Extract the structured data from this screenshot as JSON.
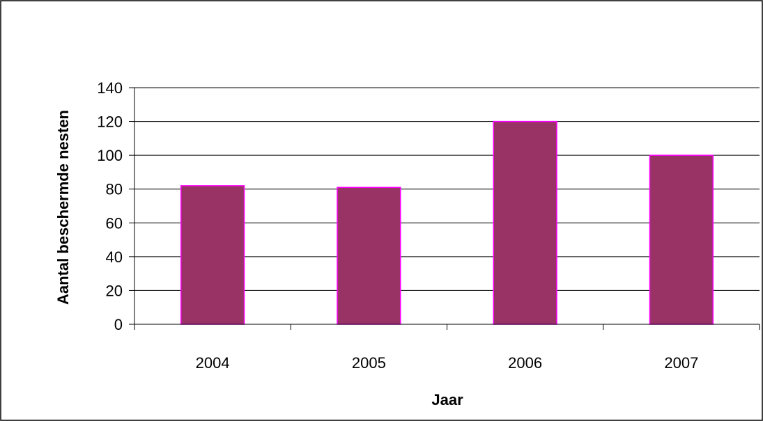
{
  "chart_data": {
    "type": "bar",
    "title": "",
    "xlabel": "Jaar",
    "ylabel": "Aantal beschermde nesten",
    "categories": [
      "2004",
      "2005",
      "2006",
      "2007"
    ],
    "series": [
      {
        "values": [
          82,
          81,
          120,
          100
        ]
      }
    ],
    "ylim": [
      0,
      140
    ],
    "yticks": [
      0,
      20,
      40,
      60,
      80,
      100,
      120,
      140
    ],
    "grid": true,
    "legend": "none",
    "colors": {
      "bar_fill": "#993366",
      "bar_stroke": "#ff00ff",
      "grid": "#000000"
    }
  }
}
